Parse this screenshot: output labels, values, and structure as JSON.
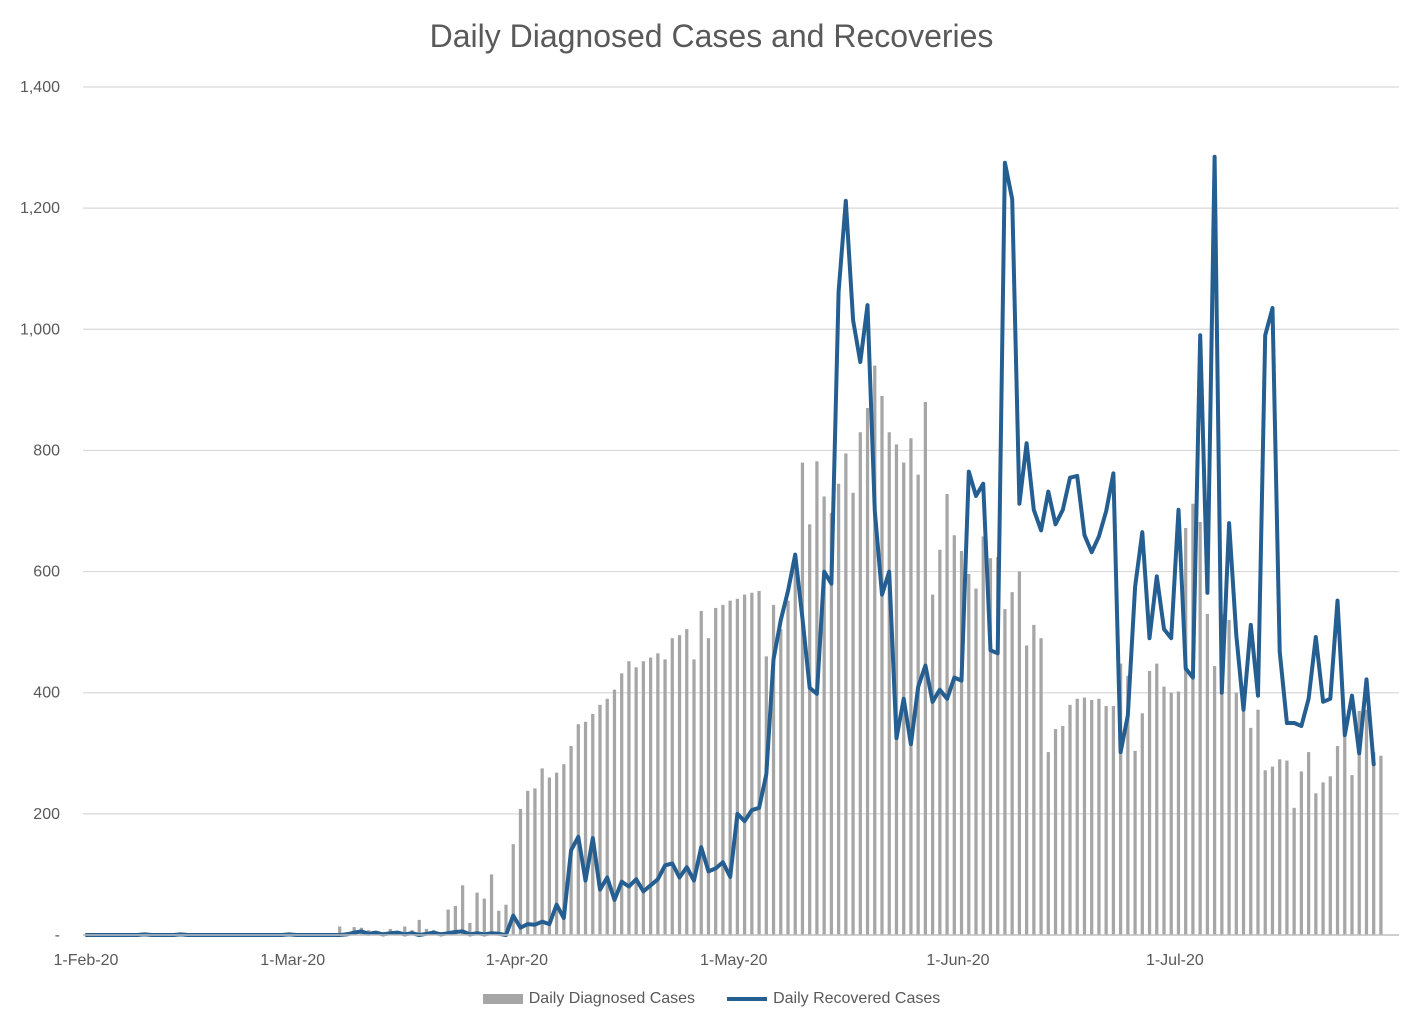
{
  "chart_data": {
    "type": "bar+line",
    "title": "Daily Diagnosed Cases and Recoveries",
    "xlabel": "",
    "ylabel": "",
    "ylim": [
      0,
      1400
    ],
    "y_ticks": [
      "-",
      "200",
      "400",
      "600",
      "800",
      "1,000",
      "1,200",
      "1,400"
    ],
    "y_tick_values": [
      0,
      200,
      400,
      600,
      800,
      1000,
      1200,
      1400
    ],
    "x_start_date": "2020-02-01",
    "x_end_date": "2020-07-31",
    "x_ticks": [
      {
        "label": "1-Feb-20",
        "date": "2020-02-01"
      },
      {
        "label": "1-Mar-20",
        "date": "2020-03-01"
      },
      {
        "label": "1-Apr-20",
        "date": "2020-04-01"
      },
      {
        "label": "1-May-20",
        "date": "2020-05-01"
      },
      {
        "label": "1-Jun-20",
        "date": "2020-06-01"
      },
      {
        "label": "1-Jul-20",
        "date": "2020-07-01"
      }
    ],
    "grid": true,
    "legend_position": "bottom",
    "series": [
      {
        "name": "Daily Diagnosed Cases",
        "kind": "bar",
        "color": "#a6a6a6",
        "values": [
          0,
          0,
          0,
          0,
          0,
          0,
          0,
          0,
          0,
          0,
          0,
          0,
          0,
          0,
          0,
          0,
          0,
          0,
          0,
          0,
          0,
          0,
          0,
          0,
          0,
          0,
          0,
          0,
          0,
          0,
          0,
          0,
          0,
          0,
          0,
          14,
          5,
          13,
          12,
          8,
          2,
          5,
          10,
          6,
          14,
          8,
          25,
          10,
          8,
          5,
          42,
          48,
          82,
          20,
          70,
          60,
          100,
          40,
          50,
          150,
          208,
          238,
          242,
          275,
          260,
          268,
          282,
          312,
          348,
          352,
          365,
          380,
          390,
          405,
          432,
          452,
          442,
          452,
          458,
          465,
          455,
          490,
          495,
          505,
          455,
          535,
          490,
          540,
          545,
          552,
          555,
          562,
          565,
          568,
          460,
          545,
          505,
          552,
          622,
          780,
          678,
          782,
          724,
          697,
          745,
          795,
          730,
          830,
          870,
          940,
          890,
          830,
          810,
          780,
          820,
          760,
          880,
          562,
          636,
          728,
          660,
          634,
          596,
          572,
          658,
          622,
          624,
          538,
          566,
          600,
          478,
          512,
          490,
          302,
          340,
          345,
          380,
          390,
          392,
          388,
          390,
          378,
          378,
          448,
          428,
          304,
          366,
          436,
          448,
          410,
          400,
          402,
          672,
          712,
          682,
          530,
          444,
          530,
          520,
          400,
          402,
          342,
          372,
          272,
          278,
          290,
          288,
          210,
          270,
          302,
          234,
          252,
          262,
          312,
          350,
          264,
          370,
          372,
          302,
          296
        ]
      },
      {
        "name": "Daily Recovered Cases",
        "kind": "line",
        "color": "#255e91",
        "values": [
          0,
          0,
          0,
          0,
          0,
          0,
          0,
          0,
          1,
          0,
          0,
          0,
          0,
          1,
          0,
          0,
          0,
          0,
          0,
          0,
          0,
          0,
          0,
          0,
          0,
          0,
          0,
          0,
          1,
          0,
          0,
          0,
          0,
          0,
          0,
          0,
          1,
          4,
          6,
          2,
          4,
          1,
          3,
          4,
          1,
          3,
          0,
          2,
          4,
          1,
          3,
          5,
          6,
          1,
          3,
          1,
          3,
          2,
          0,
          32,
          12,
          18,
          17,
          22,
          18,
          50,
          28,
          140,
          162,
          90,
          160,
          75,
          95,
          58,
          88,
          80,
          92,
          72,
          82,
          92,
          115,
          118,
          95,
          112,
          90,
          145,
          105,
          110,
          120,
          96,
          200,
          188,
          206,
          210,
          265,
          455,
          520,
          568,
          628,
          522,
          408,
          398,
          600,
          580,
          1062,
          1212,
          1015,
          946,
          1040,
          700,
          562,
          600,
          325,
          390,
          315,
          410,
          445,
          385,
          405,
          390,
          425,
          420,
          765,
          725,
          745,
          470,
          465,
          1275,
          1215,
          712,
          812,
          702,
          668,
          732,
          678,
          702,
          755,
          758,
          660,
          632,
          658,
          700,
          762,
          302,
          362,
          575,
          665,
          490,
          592,
          505,
          490,
          702,
          440,
          425,
          990,
          565,
          1285,
          400,
          680,
          495,
          372,
          512,
          395,
          990,
          1035,
          468,
          350,
          350,
          345,
          390,
          492,
          385,
          390,
          552,
          330,
          395,
          300,
          422,
          282
        ]
      }
    ]
  }
}
